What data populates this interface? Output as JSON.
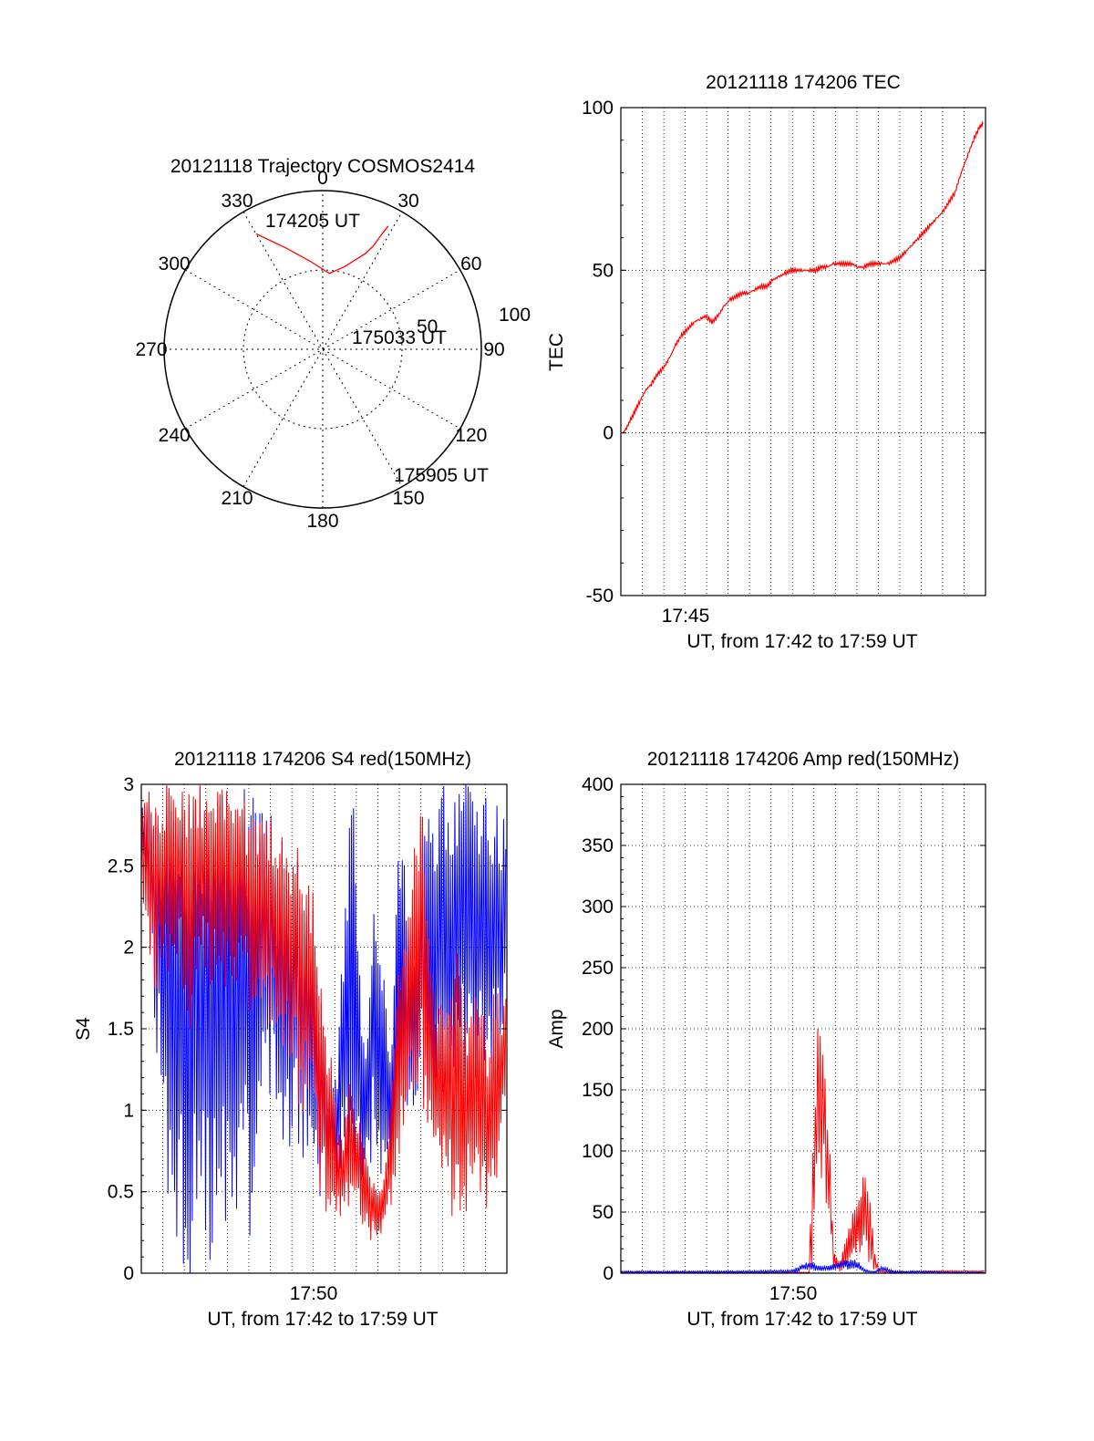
{
  "colors": {
    "red": "#ff0000",
    "blue": "#0000ff",
    "axis": "#000000",
    "grid": "#000000"
  },
  "chart_data": [
    {
      "id": "trajectory",
      "type": "polar",
      "title": "20121118 Trajectory COSMOS2414",
      "azimuth_labels": [
        "0",
        "30",
        "60",
        "90",
        "120",
        "150",
        "180",
        "210",
        "240",
        "270",
        "300",
        "330"
      ],
      "elevation_ring_labels": [
        "50",
        "100"
      ],
      "series": [
        {
          "color": "#ff0000",
          "points": [
            [
              -30,
              84
            ],
            [
              -20,
              68
            ],
            [
              -8,
              56
            ],
            [
              5,
              48
            ],
            [
              15,
              54
            ],
            [
              20,
              60
            ],
            [
              24,
              66
            ],
            [
              26,
              72
            ],
            [
              27,
              80
            ],
            [
              28,
              88
            ]
          ]
        }
      ],
      "annotations": [
        {
          "text": "174205 UT"
        },
        {
          "text": "175033 UT"
        },
        {
          "text": "175905 UT"
        }
      ]
    },
    {
      "id": "tec",
      "type": "line",
      "title": "20121118 174206 TEC",
      "ylabel": "TEC",
      "xlabel": "UT, from 17:42 to 17:59 UT",
      "xlim": [
        17.7,
        18.0
      ],
      "ylim": [
        -50,
        100
      ],
      "yticks": [
        "100",
        "50",
        "0",
        "-50"
      ],
      "xtick_label": "17:45",
      "series": [
        {
          "color": "#ff0000",
          "x": [
            17.7017,
            17.704,
            17.708,
            17.712,
            17.716,
            17.72,
            17.725,
            17.73,
            17.735,
            17.74,
            17.745,
            17.75,
            17.755,
            17.76,
            17.765,
            17.77,
            17.775,
            17.78,
            17.785,
            17.79,
            17.795,
            17.8,
            17.805,
            17.81,
            17.815,
            17.82,
            17.825,
            17.83,
            17.835,
            17.84,
            17.845,
            17.85,
            17.855,
            17.86,
            17.865,
            17.87,
            17.875,
            17.88,
            17.885,
            17.89,
            17.895,
            17.9,
            17.905,
            17.91,
            17.915,
            17.92,
            17.925,
            17.93,
            17.935,
            17.94,
            17.945,
            17.95,
            17.955,
            17.96,
            17.965,
            17.97,
            17.975,
            17.98,
            17.985,
            17.99,
            17.995,
            17.998
          ],
          "y": [
            0,
            1,
            4,
            7,
            10,
            13,
            15,
            18,
            20,
            23,
            27,
            30,
            32,
            34,
            35,
            36,
            34,
            36,
            39,
            41,
            42,
            43,
            43,
            44,
            45,
            45,
            47,
            48,
            49,
            50,
            50,
            50,
            50,
            50,
            51,
            51,
            52,
            52,
            52,
            52,
            51,
            51,
            52,
            52,
            52,
            52,
            53,
            54,
            56,
            58,
            60,
            62,
            64,
            66,
            68,
            71,
            74,
            80,
            85,
            90,
            94,
            95
          ]
        }
      ]
    },
    {
      "id": "s4",
      "type": "line",
      "title": "20121118 174206 S4 red(150MHz)",
      "ylabel": "S4",
      "xlabel": "UT, from 17:42 to 17:59 UT",
      "xlim": [
        17.7,
        18.0
      ],
      "ylim": [
        0,
        3
      ],
      "yticks": [
        "3",
        "2.5",
        "2",
        "1.5",
        "1",
        "0.5",
        "0"
      ],
      "xtick_label": "17:50",
      "series": [
        {
          "color": "#0000ff",
          "envelope": [
            [
              17.7,
              2.8,
              2.9
            ],
            [
              17.71,
              1.5,
              3.0
            ],
            [
              17.72,
              0.5,
              3.0
            ],
            [
              17.73,
              0.0,
              3.0
            ],
            [
              17.74,
              0.0,
              3.0
            ],
            [
              17.75,
              0.0,
              3.0
            ],
            [
              17.76,
              0.0,
              3.0
            ],
            [
              17.77,
              0.0,
              3.0
            ],
            [
              17.78,
              0.4,
              3.0
            ],
            [
              17.79,
              0.0,
              3.0
            ],
            [
              17.8,
              1.2,
              3.0
            ],
            [
              17.81,
              0.9,
              2.8
            ],
            [
              17.82,
              0.5,
              2.7
            ],
            [
              17.83,
              0.8,
              2.5
            ],
            [
              17.84,
              0.4,
              2.3
            ],
            [
              17.845,
              0.5,
              2.0
            ],
            [
              17.85,
              0.4,
              1.6
            ],
            [
              17.855,
              0.5,
              1.2
            ],
            [
              17.86,
              0.4,
              1.2
            ],
            [
              17.865,
              0.5,
              2.0
            ],
            [
              17.87,
              0.6,
              2.7
            ],
            [
              17.875,
              0.7,
              3.0
            ],
            [
              17.88,
              0.5,
              1.8
            ],
            [
              17.885,
              0.6,
              1.3
            ],
            [
              17.89,
              0.7,
              2.4
            ],
            [
              17.895,
              0.6,
              2.0
            ],
            [
              17.9,
              0.5,
              1.8
            ],
            [
              17.905,
              0.7,
              1.4
            ],
            [
              17.91,
              0.9,
              2.5
            ],
            [
              17.915,
              1.0,
              2.7
            ],
            [
              17.92,
              0.9,
              2.2
            ],
            [
              17.925,
              1.0,
              1.9
            ],
            [
              17.93,
              1.0,
              2.8
            ],
            [
              17.935,
              0.9,
              2.9
            ],
            [
              17.94,
              0.8,
              3.0
            ],
            [
              17.95,
              1.1,
              3.0
            ],
            [
              17.96,
              1.2,
              3.0
            ],
            [
              17.97,
              1.1,
              3.0
            ],
            [
              17.98,
              1.3,
              3.0
            ],
            [
              17.99,
              1.2,
              2.9
            ],
            [
              18.0,
              1.4,
              2.8
            ]
          ]
        },
        {
          "color": "#ff0000",
          "envelope": [
            [
              17.7,
              2.4,
              3.0
            ],
            [
              17.71,
              1.6,
              3.0
            ],
            [
              17.72,
              1.8,
              3.0
            ],
            [
              17.73,
              1.9,
              3.0
            ],
            [
              17.74,
              1.5,
              3.0
            ],
            [
              17.75,
              1.8,
              3.0
            ],
            [
              17.76,
              1.7,
              3.0
            ],
            [
              17.77,
              1.6,
              3.0
            ],
            [
              17.78,
              1.8,
              3.0
            ],
            [
              17.79,
              1.5,
              2.8
            ],
            [
              17.8,
              1.6,
              2.9
            ],
            [
              17.81,
              1.4,
              2.8
            ],
            [
              17.82,
              1.2,
              2.7
            ],
            [
              17.83,
              1.0,
              2.6
            ],
            [
              17.84,
              0.9,
              2.4
            ],
            [
              17.845,
              0.6,
              2.1
            ],
            [
              17.85,
              0.3,
              1.7
            ],
            [
              17.855,
              0.1,
              1.4
            ],
            [
              17.86,
              0.2,
              1.0
            ],
            [
              17.865,
              0.3,
              0.8
            ],
            [
              17.87,
              0.4,
              1.2
            ],
            [
              17.875,
              0.5,
              1.0
            ],
            [
              17.88,
              0.3,
              1.0
            ],
            [
              17.885,
              0.2,
              0.7
            ],
            [
              17.89,
              0.2,
              0.6
            ],
            [
              17.895,
              0.2,
              0.5
            ],
            [
              17.9,
              0.3,
              0.6
            ],
            [
              17.905,
              0.4,
              1.3
            ],
            [
              17.91,
              0.6,
              1.8
            ],
            [
              17.915,
              0.9,
              2.0
            ],
            [
              17.92,
              1.1,
              2.4
            ],
            [
              17.925,
              1.0,
              2.8
            ],
            [
              17.93,
              0.9,
              3.0
            ],
            [
              17.935,
              0.9,
              2.2
            ],
            [
              17.94,
              0.8,
              1.8
            ],
            [
              17.945,
              0.4,
              1.7
            ],
            [
              17.95,
              0.5,
              1.6
            ],
            [
              17.955,
              0.3,
              1.8
            ],
            [
              17.96,
              0.4,
              2.0
            ],
            [
              17.965,
              0.3,
              1.6
            ],
            [
              17.97,
              0.5,
              1.6
            ],
            [
              17.975,
              0.6,
              2.0
            ],
            [
              17.98,
              0.3,
              1.8
            ],
            [
              17.985,
              0.3,
              1.4
            ],
            [
              17.99,
              0.5,
              1.9
            ],
            [
              17.995,
              0.7,
              1.6
            ],
            [
              18.0,
              1.0,
              1.8
            ]
          ]
        }
      ]
    },
    {
      "id": "amp",
      "type": "line",
      "title": "20121118 174206 Amp red(150MHz)",
      "ylabel": "Amp",
      "xlabel": "UT, from 17:42 to 17:59 UT",
      "xlim": [
        17.7,
        18.0
      ],
      "ylim": [
        0,
        400
      ],
      "yticks": [
        "400",
        "350",
        "300",
        "250",
        "200",
        "150",
        "100",
        "50",
        "0"
      ],
      "xtick_label": "17:50",
      "series": [
        {
          "color": "#0000ff",
          "envelope": [
            [
              17.7,
              0,
              2
            ],
            [
              17.75,
              0,
              2
            ],
            [
              17.8,
              0,
              2
            ],
            [
              17.84,
              0,
              3
            ],
            [
              17.845,
              0,
              5
            ],
            [
              17.85,
              2,
              8
            ],
            [
              17.855,
              2,
              10
            ],
            [
              17.86,
              2,
              8
            ],
            [
              17.865,
              1,
              6
            ],
            [
              17.87,
              2,
              6
            ],
            [
              17.875,
              2,
              8
            ],
            [
              17.88,
              3,
              10
            ],
            [
              17.885,
              2,
              12
            ],
            [
              17.89,
              2,
              12
            ],
            [
              17.895,
              2,
              10
            ],
            [
              17.9,
              1,
              4
            ],
            [
              17.905,
              0,
              2
            ],
            [
              17.91,
              0,
              2
            ],
            [
              17.915,
              1,
              6
            ],
            [
              17.92,
              0,
              4
            ],
            [
              17.925,
              0,
              2
            ],
            [
              17.95,
              0,
              2
            ],
            [
              17.97,
              0,
              1
            ],
            [
              18.0,
              0,
              1
            ]
          ]
        },
        {
          "color": "#ff0000",
          "envelope": [
            [
              17.7,
              0,
              1
            ],
            [
              17.8,
              0,
              1
            ],
            [
              17.855,
              0,
              1
            ],
            [
              17.858,
              5,
              120
            ],
            [
              17.862,
              60,
              200
            ],
            [
              17.866,
              70,
              210
            ],
            [
              17.87,
              40,
              140
            ],
            [
              17.872,
              20,
              100
            ],
            [
              17.875,
              2,
              20
            ],
            [
              17.88,
              1,
              8
            ],
            [
              17.885,
              3,
              30
            ],
            [
              17.89,
              5,
              50
            ],
            [
              17.895,
              8,
              65
            ],
            [
              17.9,
              15,
              90
            ],
            [
              17.903,
              10,
              80
            ],
            [
              17.906,
              5,
              60
            ],
            [
              17.909,
              2,
              20
            ],
            [
              17.912,
              0,
              3
            ],
            [
              17.93,
              0,
              1
            ],
            [
              17.95,
              1,
              2
            ],
            [
              17.97,
              1,
              2
            ],
            [
              18.0,
              1,
              2
            ]
          ]
        }
      ]
    }
  ]
}
